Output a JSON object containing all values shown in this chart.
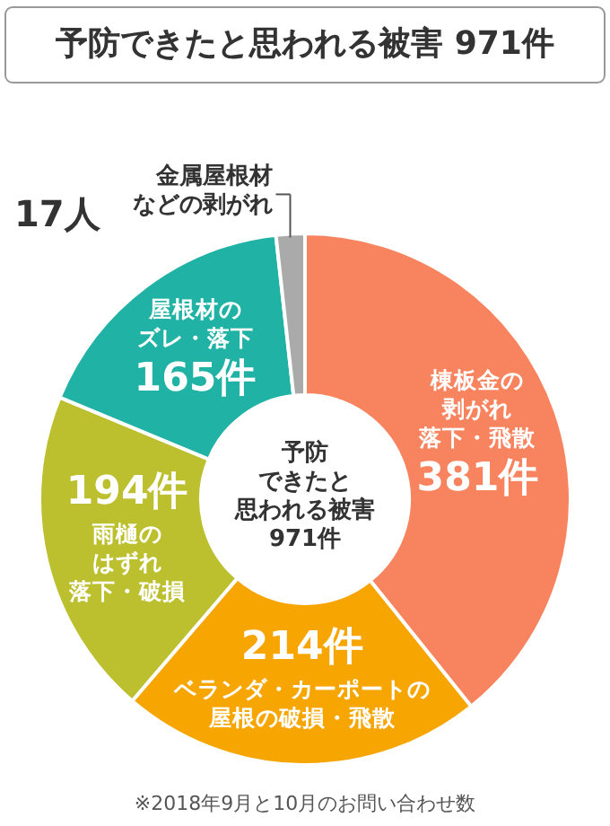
{
  "chart_data": {
    "type": "donut",
    "title": "予防できたと思われる被害 971件",
    "categories": [
      "棟板金の剥がれ落下・飛散",
      "ベランダ・カーポートの屋根の破損・飛散",
      "雨樋のはずれ落下・破損",
      "屋根材のズレ・落下",
      "金属屋根材などの剥がれ"
    ],
    "values": [
      381,
      214,
      194,
      165,
      17
    ],
    "value_labels": [
      "381件",
      "214件",
      "194件",
      "165件",
      "17人"
    ],
    "colors": [
      "#f7845f",
      "#f7a500",
      "#bcbf2e",
      "#20b2a4",
      "#aaaaaa"
    ],
    "legend": false,
    "annotations": [
      "予防できたと思われる被害971件",
      "※2018年9月と10月のお問い合わせ数"
    ]
  }
}
